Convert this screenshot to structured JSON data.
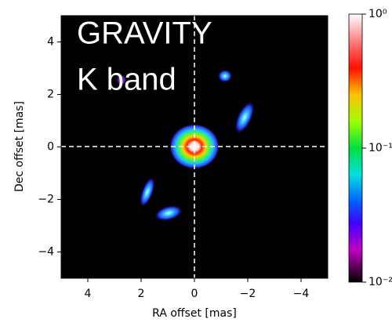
{
  "chart_data": {
    "type": "image",
    "annotations": [
      "GRAVITY",
      "K band"
    ],
    "xlabel": "RA offset [mas]",
    "ylabel": "Dec offset [mas]",
    "xlim": [
      5,
      -5
    ],
    "ylim": [
      -5,
      5
    ],
    "xticks": [
      4,
      2,
      0,
      {
        "value": -2,
        "label": "−2"
      },
      {
        "value": -4,
        "label": "−4"
      }
    ],
    "yticks": [
      {
        "value": -4,
        "label": "−4"
      },
      {
        "value": -2,
        "label": "−2"
      },
      0,
      2,
      4
    ],
    "colorbar": {
      "scale": "log",
      "lim": [
        0.01,
        1
      ],
      "ticks": [
        {
          "value": 1,
          "label": "10⁰"
        },
        {
          "value": 0.1,
          "label": "10⁻¹"
        },
        {
          "value": 0.01,
          "label": "10⁻²"
        }
      ]
    }
  }
}
